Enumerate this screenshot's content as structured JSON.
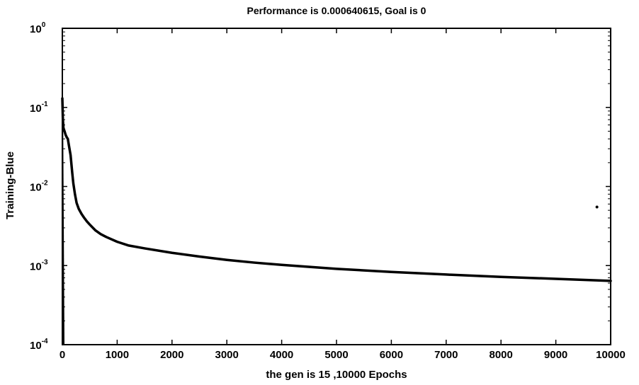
{
  "chart_data": {
    "type": "line",
    "title": "Performance is 0.000640615, Goal is 0",
    "xlabel": "the gen is 15 ,10000 Epochs",
    "ylabel": "Training-Blue",
    "xlim": [
      0,
      10000
    ],
    "ylim": [
      0.0001,
      1
    ],
    "yscale": "log",
    "grid": false,
    "x_ticks": [
      0,
      1000,
      2000,
      3000,
      4000,
      5000,
      6000,
      7000,
      8000,
      9000,
      10000
    ],
    "x_tick_labels": [
      "0",
      "1000",
      "2000",
      "3000",
      "4000",
      "5000",
      "6000",
      "7000",
      "8000",
      "9000",
      "10000"
    ],
    "y_ticks": [
      0.0001,
      0.001,
      0.01,
      0.1,
      1
    ],
    "y_tick_labels": [
      {
        "base": "10",
        "exp": "-4"
      },
      {
        "base": "10",
        "exp": "-3"
      },
      {
        "base": "10",
        "exp": "-2"
      },
      {
        "base": "10",
        "exp": "-1"
      },
      {
        "base": "10",
        "exp": "0"
      }
    ],
    "series": [
      {
        "color": "#000000",
        "x": [
          0,
          10,
          20,
          40,
          60,
          80,
          100,
          120,
          150,
          180,
          200,
          230,
          260,
          300,
          350,
          400,
          450,
          500,
          600,
          700,
          800,
          1000,
          1200,
          1500,
          2000,
          2500,
          3000,
          3500,
          4000,
          5000,
          6000,
          7000,
          8000,
          9000,
          10000
        ],
        "y": [
          0.13,
          0.07,
          0.055,
          0.05,
          0.045,
          0.042,
          0.04,
          0.033,
          0.025,
          0.015,
          0.011,
          0.008,
          0.0062,
          0.0052,
          0.0045,
          0.004,
          0.0036,
          0.0033,
          0.0028,
          0.0025,
          0.0023,
          0.002,
          0.0018,
          0.00165,
          0.00145,
          0.0013,
          0.00118,
          0.00109,
          0.00102,
          0.00091,
          0.00083,
          0.00077,
          0.00072,
          0.00068,
          0.00064
        ]
      },
      {
        "color": "#000000",
        "x": [
          9750
        ],
        "y": [
          0.0055
        ]
      }
    ]
  }
}
